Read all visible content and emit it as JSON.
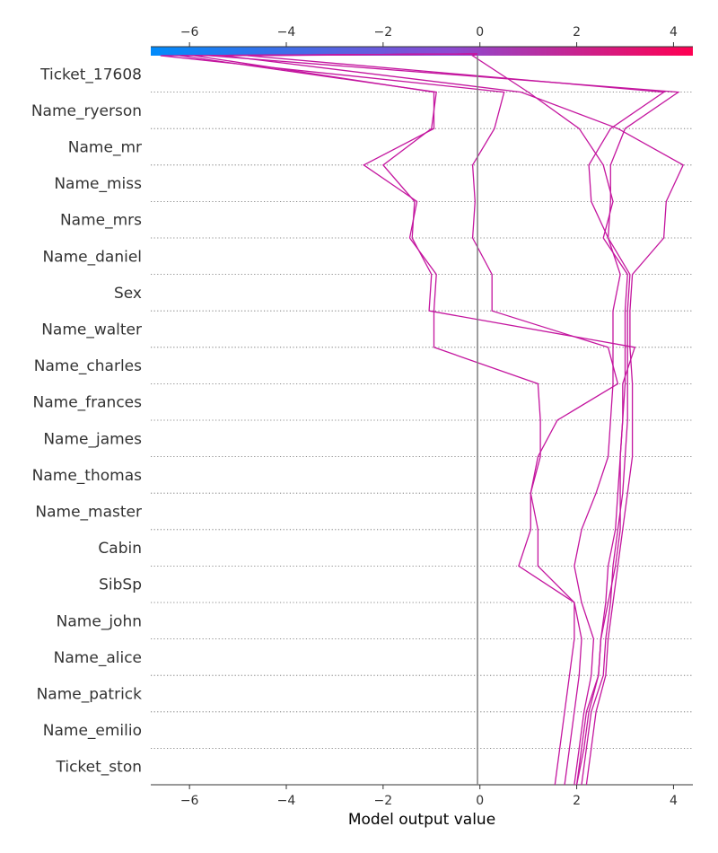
{
  "chart_data": {
    "type": "line",
    "title": "",
    "xlabel": "Model output value",
    "ylabel": "",
    "xlim": [
      -6.8,
      4.4
    ],
    "x_ticks": [
      -6,
      -4,
      -2,
      0,
      2,
      4
    ],
    "x_tick_labels": [
      "−6",
      "−4",
      "−2",
      "0",
      "2",
      "4"
    ],
    "base_value": -0.05,
    "grid": "dotted horizontal per feature row",
    "colormap": {
      "low": "#008bfb",
      "mid": "#8b4bd2",
      "high": "#ff0052"
    },
    "line_color": "#c4169f",
    "features_top_to_bottom": [
      "Ticket_17608",
      "Name_ryerson",
      "Name_mr",
      "Name_miss",
      "Name_mrs",
      "Name_daniel",
      "Sex",
      "Name_walter",
      "Name_charles",
      "Name_frances",
      "Name_james",
      "Name_thomas",
      "Name_master",
      "Cabin",
      "SibSp",
      "Name_john",
      "Name_alice",
      "Name_patrick",
      "Name_emilio",
      "Ticket_ston"
    ],
    "series_x_from_bottom_to_top": [
      [
        1.55,
        1.65,
        1.75,
        1.85,
        1.95,
        1.95,
        1.2,
        1.2,
        1.05,
        1.25,
        1.25,
        1.2,
        -0.95,
        -0.95,
        -0.9,
        -1.45,
        -1.3,
        -2.4,
        -0.95,
        -0.95,
        -5.9,
        -0.05
      ],
      [
        1.75,
        1.85,
        1.95,
        2.05,
        2.1,
        1.95,
        0.8,
        1.05,
        1.05,
        1.2,
        1.6,
        2.85,
        2.65,
        0.25,
        0.25,
        -0.15,
        -0.1,
        -0.15,
        0.3,
        0.5,
        -6.6,
        -0.05
      ],
      [
        1.95,
        2.05,
        2.15,
        2.3,
        2.35,
        2.1,
        1.95,
        2.1,
        2.4,
        2.65,
        2.7,
        2.75,
        2.75,
        2.75,
        2.9,
        2.65,
        2.3,
        2.25,
        2.7,
        3.8,
        -4.8,
        -0.05
      ],
      [
        2.0,
        2.1,
        2.2,
        2.45,
        2.5,
        2.65,
        2.8,
        2.9,
        2.9,
        2.9,
        2.95,
        2.95,
        3.2,
        -1.05,
        -1.0,
        -1.4,
        -1.35,
        -2.0,
        -1.0,
        -0.9,
        -6.2,
        -0.05
      ],
      [
        2.1,
        2.2,
        2.3,
        2.55,
        2.6,
        2.7,
        2.75,
        2.85,
        2.95,
        3.0,
        3.05,
        3.05,
        3.05,
        3.05,
        3.1,
        2.65,
        2.7,
        2.7,
        3.0,
        4.1,
        -5.6,
        -0.05
      ],
      [
        2.2,
        2.3,
        2.4,
        2.6,
        2.65,
        2.75,
        2.85,
        2.95,
        3.05,
        3.15,
        3.15,
        3.15,
        3.1,
        3.1,
        3.15,
        3.8,
        3.85,
        4.2,
        2.85,
        0.85,
        -5.3,
        -0.05
      ],
      [
        2.0,
        2.15,
        2.25,
        2.45,
        2.5,
        2.6,
        2.65,
        2.8,
        2.85,
        2.9,
        2.95,
        3.0,
        3.0,
        3.0,
        3.05,
        2.55,
        2.75,
        2.55,
        2.05,
        1.0,
        -0.15,
        -0.05
      ]
    ]
  }
}
